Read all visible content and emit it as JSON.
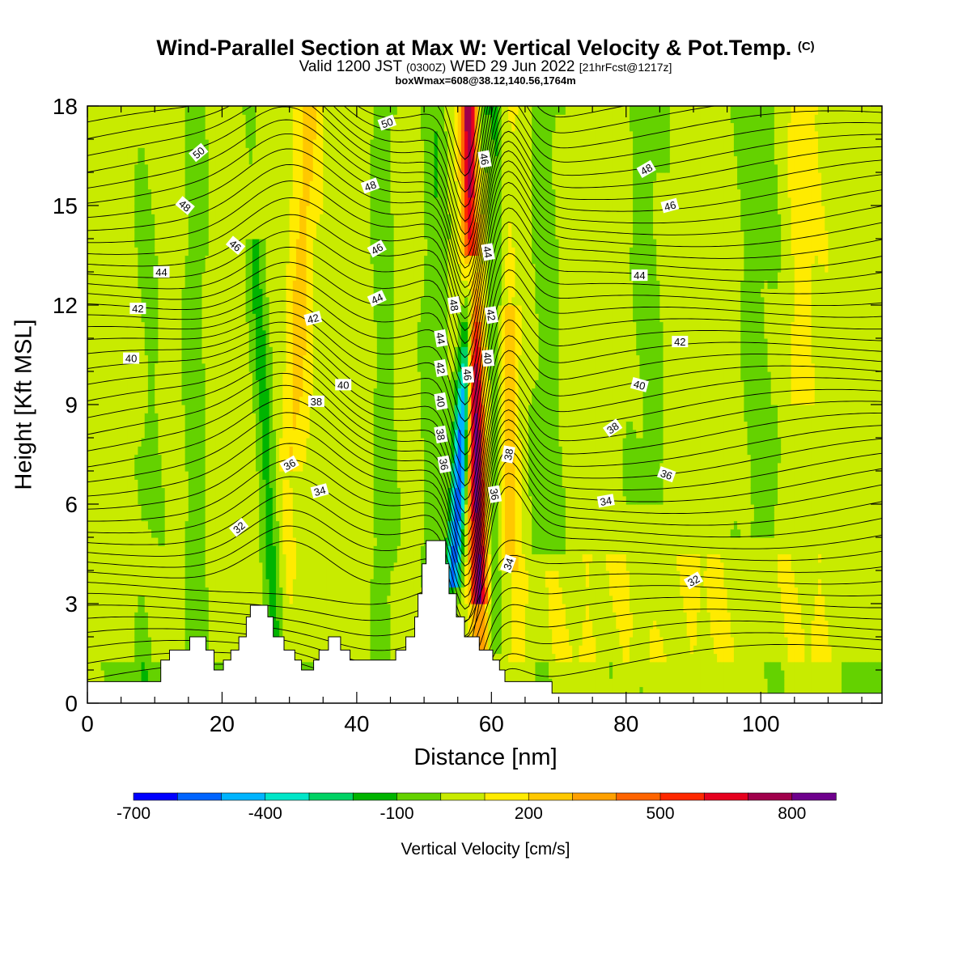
{
  "title": "Wind-Parallel Section at Max W: Vertical Velocity & Pot.Temp.",
  "copyright": "(C)",
  "subtitle_a": "Valid 1200 JST",
  "subtitle_b": "(0300Z)",
  "subtitle_c": "WED 29 Jun 2022",
  "subtitle_d": "[21hrFcst@1217z]",
  "subtitle2": "boxWmax=608@38.12,140.56,1764m",
  "chart_data": {
    "type": "heatmap",
    "xlabel": "Distance [nm]",
    "ylabel": "Height [Kft MSL]",
    "xlim": [
      0,
      118
    ],
    "ylim": [
      0,
      18
    ],
    "xticks": [
      0,
      20,
      40,
      60,
      80,
      100
    ],
    "yticks": [
      0,
      3,
      6,
      9,
      12,
      15,
      18
    ],
    "colorbar": {
      "title": "Vertical Velocity [cm/s]",
      "tick_labels": [
        "-700",
        "-400",
        "-100",
        "200",
        "500",
        "800"
      ],
      "tick_values": [
        -700,
        -400,
        -100,
        200,
        500,
        800
      ],
      "bin_edges": [
        -700,
        -600,
        -500,
        -400,
        -300,
        -200,
        -100,
        0,
        100,
        200,
        300,
        400,
        500,
        600,
        700,
        800,
        900
      ],
      "colors": [
        "#0000ff",
        "#0064ff",
        "#00b4ff",
        "#00e6c8",
        "#00d264",
        "#00b400",
        "#64d200",
        "#c8eb00",
        "#ffeb00",
        "#ffc800",
        "#ffa000",
        "#ff6400",
        "#ff2800",
        "#e6001e",
        "#a0004b",
        "#6e008c"
      ]
    },
    "terrain": [
      [
        0,
        0.65
      ],
      [
        10.9,
        0.65
      ],
      [
        10.9,
        1.3
      ],
      [
        12.2,
        1.3
      ],
      [
        12.2,
        1.6
      ],
      [
        15.2,
        1.6
      ],
      [
        15.2,
        2.0
      ],
      [
        17.6,
        2.0
      ],
      [
        17.6,
        1.6
      ],
      [
        18.8,
        1.6
      ],
      [
        18.8,
        1.0
      ],
      [
        20.2,
        1.0
      ],
      [
        20.2,
        1.3
      ],
      [
        21.3,
        1.3
      ],
      [
        21.3,
        1.6
      ],
      [
        22.5,
        1.6
      ],
      [
        22.5,
        2.0
      ],
      [
        23.6,
        2.0
      ],
      [
        23.6,
        2.6
      ],
      [
        24.2,
        2.6
      ],
      [
        24.2,
        2.95
      ],
      [
        26.8,
        2.95
      ],
      [
        26.8,
        2.6
      ],
      [
        27.6,
        2.6
      ],
      [
        27.6,
        2.0
      ],
      [
        29.2,
        2.0
      ],
      [
        29.2,
        1.6
      ],
      [
        30.8,
        1.6
      ],
      [
        30.8,
        1.3
      ],
      [
        31.8,
        1.3
      ],
      [
        31.8,
        1.0
      ],
      [
        33.6,
        1.0
      ],
      [
        33.6,
        1.3
      ],
      [
        34.4,
        1.3
      ],
      [
        34.4,
        1.6
      ],
      [
        35.8,
        1.6
      ],
      [
        35.8,
        2.0
      ],
      [
        37.6,
        2.0
      ],
      [
        37.6,
        1.6
      ],
      [
        39.0,
        1.6
      ],
      [
        39.0,
        1.3
      ],
      [
        45.8,
        1.3
      ],
      [
        45.8,
        1.6
      ],
      [
        47.3,
        1.6
      ],
      [
        47.3,
        2.0
      ],
      [
        48.6,
        2.0
      ],
      [
        48.6,
        2.6
      ],
      [
        49.1,
        2.6
      ],
      [
        49.1,
        3.3
      ],
      [
        49.7,
        3.3
      ],
      [
        49.7,
        4.2
      ],
      [
        50.3,
        4.2
      ],
      [
        50.3,
        4.9
      ],
      [
        53.2,
        4.9
      ],
      [
        53.2,
        4.2
      ],
      [
        53.7,
        4.2
      ],
      [
        53.7,
        3.3
      ],
      [
        54.8,
        3.3
      ],
      [
        54.8,
        2.6
      ],
      [
        56.0,
        2.6
      ],
      [
        56.0,
        2.0
      ],
      [
        58.2,
        2.0
      ],
      [
        58.2,
        1.6
      ],
      [
        60.2,
        1.6
      ],
      [
        60.2,
        1.3
      ],
      [
        61.2,
        1.3
      ],
      [
        61.2,
        1.0
      ],
      [
        62.0,
        1.0
      ],
      [
        62.0,
        0.65
      ],
      [
        69.0,
        0.65
      ],
      [
        69.0,
        0.3
      ],
      [
        118,
        0.3
      ]
    ],
    "contours": {
      "field": "potential temperature",
      "labels": [
        {
          "text": "50",
          "x": 16.5,
          "y": 16.6,
          "rot": -40
        },
        {
          "text": "50",
          "x": 44.5,
          "y": 17.5,
          "rot": -20
        },
        {
          "text": "48",
          "x": 14.5,
          "y": 15.0,
          "rot": 40
        },
        {
          "text": "48",
          "x": 42.0,
          "y": 15.6,
          "rot": -20
        },
        {
          "text": "48",
          "x": 83.0,
          "y": 16.1,
          "rot": -30
        },
        {
          "text": "46",
          "x": 22.0,
          "y": 13.8,
          "rot": 40
        },
        {
          "text": "46",
          "x": 43.0,
          "y": 13.7,
          "rot": -30
        },
        {
          "text": "46",
          "x": 59.0,
          "y": 16.4,
          "rot": 80
        },
        {
          "text": "46",
          "x": 86.5,
          "y": 15.0,
          "rot": -15
        },
        {
          "text": "44",
          "x": 11.0,
          "y": 13.0,
          "rot": 0
        },
        {
          "text": "44",
          "x": 43.0,
          "y": 12.2,
          "rot": -25
        },
        {
          "text": "44",
          "x": 59.5,
          "y": 13.6,
          "rot": 80
        },
        {
          "text": "44",
          "x": 82.0,
          "y": 12.9,
          "rot": 0
        },
        {
          "text": "42",
          "x": 7.5,
          "y": 11.9,
          "rot": 0
        },
        {
          "text": "42",
          "x": 33.5,
          "y": 11.6,
          "rot": -15
        },
        {
          "text": "42",
          "x": 60.0,
          "y": 11.7,
          "rot": 80
        },
        {
          "text": "42",
          "x": 88.0,
          "y": 10.9,
          "rot": 0
        },
        {
          "text": "40",
          "x": 6.5,
          "y": 10.4,
          "rot": 0
        },
        {
          "text": "40",
          "x": 38.0,
          "y": 9.6,
          "rot": 0
        },
        {
          "text": "40",
          "x": 59.5,
          "y": 10.4,
          "rot": 85
        },
        {
          "text": "40",
          "x": 82.0,
          "y": 9.6,
          "rot": 15
        },
        {
          "text": "38",
          "x": 34.0,
          "y": 9.1,
          "rot": 0
        },
        {
          "text": "38",
          "x": 62.5,
          "y": 7.5,
          "rot": -80
        },
        {
          "text": "38",
          "x": 78.0,
          "y": 8.3,
          "rot": -35
        },
        {
          "text": "36",
          "x": 30.0,
          "y": 7.2,
          "rot": -30
        },
        {
          "text": "36",
          "x": 60.5,
          "y": 6.3,
          "rot": 80
        },
        {
          "text": "36",
          "x": 86.0,
          "y": 6.9,
          "rot": 20
        },
        {
          "text": "34",
          "x": 34.5,
          "y": 6.4,
          "rot": -15
        },
        {
          "text": "34",
          "x": 62.5,
          "y": 4.2,
          "rot": -70
        },
        {
          "text": "34",
          "x": 77.0,
          "y": 6.1,
          "rot": -10
        },
        {
          "text": "32",
          "x": 22.5,
          "y": 5.3,
          "rot": -40
        },
        {
          "text": "32",
          "x": 90.0,
          "y": 3.7,
          "rot": -30
        },
        {
          "text": "48",
          "x": 54.5,
          "y": 12.0,
          "rot": 80
        },
        {
          "text": "44",
          "x": 52.5,
          "y": 11.0,
          "rot": 80
        },
        {
          "text": "42",
          "x": 52.5,
          "y": 10.1,
          "rot": 80
        },
        {
          "text": "40",
          "x": 52.5,
          "y": 9.1,
          "rot": 80
        },
        {
          "text": "38",
          "x": 52.5,
          "y": 8.1,
          "rot": 80
        },
        {
          "text": "36",
          "x": 53.0,
          "y": 7.2,
          "rot": 80
        },
        {
          "text": "46",
          "x": 56.5,
          "y": 9.9,
          "rot": 85
        }
      ]
    }
  }
}
